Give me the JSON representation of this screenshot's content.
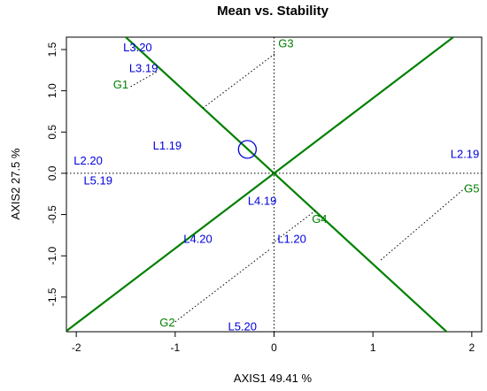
{
  "chart_data": {
    "type": "scatter",
    "title": "Mean vs. Stability",
    "xlabel": "AXIS1 49.41 %",
    "ylabel": "AXIS2 27.5 %",
    "xlim": [
      -2.1,
      2.1
    ],
    "ylim": [
      -1.92,
      1.65
    ],
    "xticks": [
      -2,
      -1,
      0,
      1,
      2
    ],
    "yticks": [
      -1.5,
      -1.0,
      -0.5,
      0.0,
      0.5,
      1.0,
      1.5
    ],
    "grid": false,
    "colors": {
      "genotype": "#0000dd",
      "environment": "#008000",
      "axis_line": "#008000",
      "marker": "#0000dd"
    },
    "genotype_points": [
      {
        "label": "L3.20",
        "x": -1.38,
        "y": 1.53
      },
      {
        "label": "L3.19",
        "x": -1.32,
        "y": 1.28
      },
      {
        "label": "L1.19",
        "x": -1.08,
        "y": 0.34
      },
      {
        "label": "L2.20",
        "x": -1.88,
        "y": 0.16
      },
      {
        "label": "L5.19",
        "x": -1.78,
        "y": -0.08
      },
      {
        "label": "L4.19",
        "x": -0.12,
        "y": -0.33
      },
      {
        "label": "L4.20",
        "x": -0.77,
        "y": -0.79
      },
      {
        "label": "L1.20",
        "x": 0.18,
        "y": -0.79
      },
      {
        "label": "L5.20",
        "x": -0.32,
        "y": -1.85
      },
      {
        "label": "L2.19",
        "x": 1.93,
        "y": 0.24
      }
    ],
    "environment_points": [
      {
        "label": "G1",
        "x": -1.55,
        "y": 1.08
      },
      {
        "label": "G2",
        "x": -1.08,
        "y": -1.8
      },
      {
        "label": "G3",
        "x": 0.12,
        "y": 1.58
      },
      {
        "label": "G4",
        "x": 0.46,
        "y": -0.55
      },
      {
        "label": "G5",
        "x": 2.0,
        "y": -0.18
      }
    ],
    "projection_lines": [
      {
        "label": "G1",
        "from": [
          -1.45,
          1.05
        ],
        "to": [
          -1.17,
          1.24
        ]
      },
      {
        "label": "G3",
        "from": [
          -0.72,
          0.79
        ],
        "to": [
          0.02,
          1.46
        ]
      },
      {
        "label": "G2",
        "from": [
          -1.0,
          -1.8
        ],
        "to": [
          -0.04,
          -0.92
        ]
      },
      {
        "label": "G4",
        "from": [
          -0.02,
          -0.85
        ],
        "to": [
          0.42,
          -0.45
        ]
      },
      {
        "label": "G5",
        "from": [
          1.08,
          -1.05
        ],
        "to": [
          1.93,
          -0.18
        ]
      }
    ],
    "average_environment_axis": {
      "slope": 0.91
    },
    "perpendicular_axis": {
      "slope": -1.1
    },
    "average_environment_marker": {
      "x": -0.27,
      "y": 0.29
    }
  }
}
